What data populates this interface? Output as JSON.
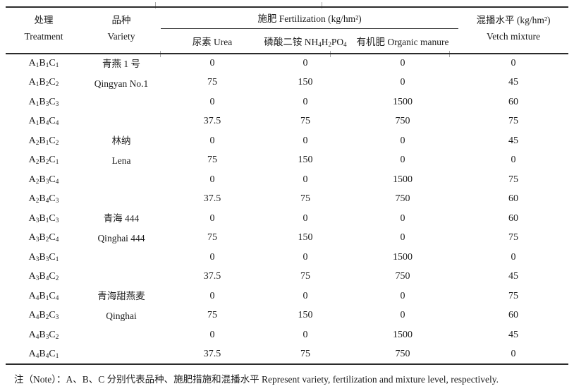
{
  "page": {
    "background": "#ffffff",
    "ink_color": "#1c1c1c",
    "rule_color": "#2b2b2b"
  },
  "table": {
    "header": {
      "treatment_zh": "处理",
      "treatment_en": "Treatment",
      "variety_zh": "品种",
      "variety_en": "Variety",
      "fertilization_group": "施肥 Fertilization (kg/hm²)",
      "urea": "尿素 Urea",
      "diammonium_phosphate": "磷酸二铵 NH4H2PO4",
      "organic_manure": "有机肥 Organic manure",
      "vetch_zh": "混播水平 (kg/hm²)",
      "vetch_en": "Vetch mixture"
    },
    "groups": [
      {
        "variety_zh": "青燕 1 号",
        "variety_en": "Qingyan No.1"
      },
      {
        "variety_zh": "林纳",
        "variety_en": "Lena"
      },
      {
        "variety_zh": "青海 444",
        "variety_en": "Qinghai 444"
      },
      {
        "variety_zh": "青海甜燕麦",
        "variety_en": "Qinghai"
      }
    ],
    "rows": [
      {
        "treatment": "A1B1C1",
        "urea": "0",
        "dap": "0",
        "organic": "0",
        "vetch": "0"
      },
      {
        "treatment": "A1B2C2",
        "urea": "75",
        "dap": "150",
        "organic": "0",
        "vetch": "45"
      },
      {
        "treatment": "A1B3C3",
        "urea": "0",
        "dap": "0",
        "organic": "1500",
        "vetch": "60"
      },
      {
        "treatment": "A1B4C4",
        "urea": "37.5",
        "dap": "75",
        "organic": "750",
        "vetch": "75"
      },
      {
        "treatment": "A2B1C2",
        "urea": "0",
        "dap": "0",
        "organic": "0",
        "vetch": "45"
      },
      {
        "treatment": "A2B2C1",
        "urea": "75",
        "dap": "150",
        "organic": "0",
        "vetch": "0"
      },
      {
        "treatment": "A2B3C4",
        "urea": "0",
        "dap": "0",
        "organic": "1500",
        "vetch": "75"
      },
      {
        "treatment": "A2B4C3",
        "urea": "37.5",
        "dap": "75",
        "organic": "750",
        "vetch": "60"
      },
      {
        "treatment": "A3B1C3",
        "urea": "0",
        "dap": "0",
        "organic": "0",
        "vetch": "60"
      },
      {
        "treatment": "A3B2C4",
        "urea": "75",
        "dap": "150",
        "organic": "0",
        "vetch": "75"
      },
      {
        "treatment": "A3B3C1",
        "urea": "0",
        "dap": "0",
        "organic": "1500",
        "vetch": "0"
      },
      {
        "treatment": "A3B4C2",
        "urea": "37.5",
        "dap": "75",
        "organic": "750",
        "vetch": "45"
      },
      {
        "treatment": "A4B1C4",
        "urea": "0",
        "dap": "0",
        "organic": "0",
        "vetch": "75"
      },
      {
        "treatment": "A4B2C3",
        "urea": "75",
        "dap": "150",
        "organic": "0",
        "vetch": "60"
      },
      {
        "treatment": "A4B3C2",
        "urea": "0",
        "dap": "0",
        "organic": "1500",
        "vetch": "45"
      },
      {
        "treatment": "A4B4C1",
        "urea": "37.5",
        "dap": "75",
        "organic": "750",
        "vetch": "0"
      }
    ]
  },
  "note": "注（Note）：A、B、C 分别代表品种、施肥措施和混播水平 Represent variety, fertilization and mixture level, respectively."
}
